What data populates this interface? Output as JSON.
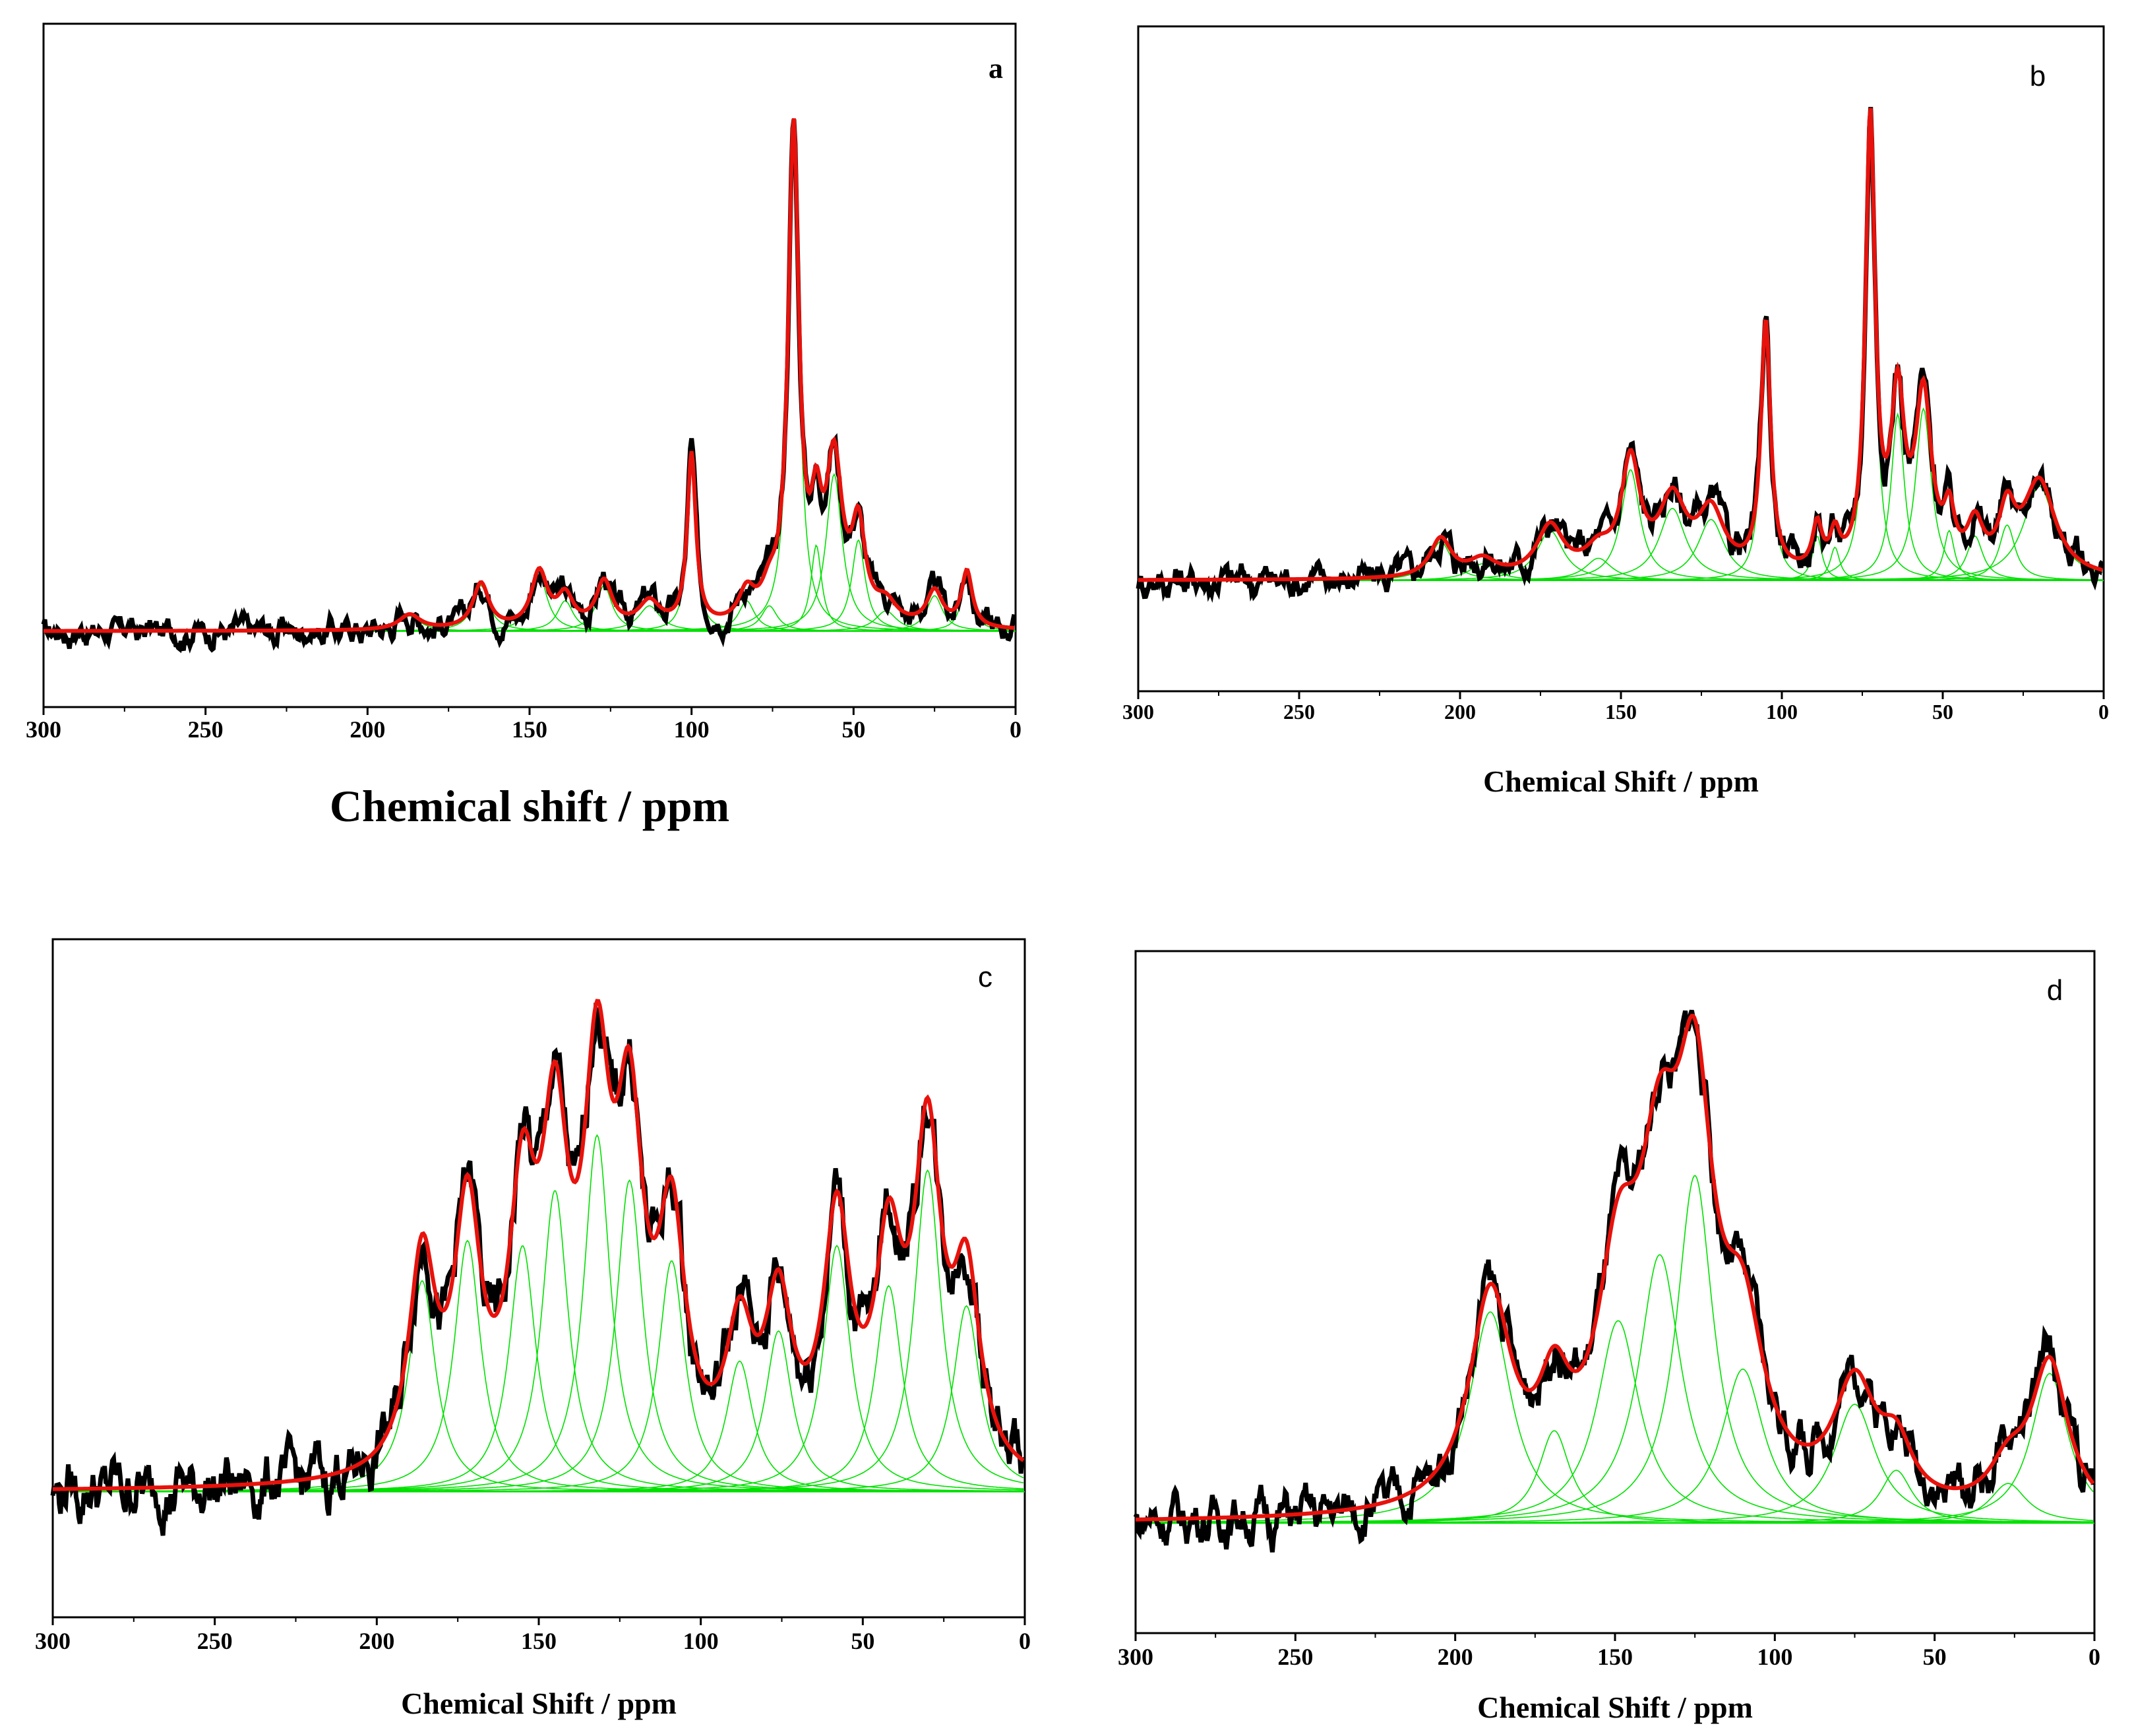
{
  "colors": {
    "experimental": "#000000",
    "fit": "#e8120c",
    "component": "#00e000",
    "axes": "#000000"
  },
  "chart_data": [
    {
      "type": "line",
      "panel_label": "a",
      "xlabel": "Chemical shift / ppm",
      "ylabel": "",
      "xlim": [
        300,
        0
      ],
      "ylim": [
        -0.15,
        1.2
      ],
      "x_ticks": [
        300,
        250,
        200,
        150,
        100,
        50,
        0
      ],
      "x_tick_labels": [
        "300",
        "250",
        "200",
        "150",
        "100",
        "50",
        "0"
      ],
      "grid": false,
      "legend": "none",
      "series": [
        {
          "name": "Experimental spectrum",
          "color": "#000000"
        },
        {
          "name": "Fitted envelope",
          "color": "#e8120c"
        },
        {
          "name": "Deconvoluted components",
          "color": "#00e000"
        }
      ],
      "components": [
        {
          "center": 187,
          "height": 0.03,
          "width": 4
        },
        {
          "center": 165,
          "height": 0.09,
          "width": 3
        },
        {
          "center": 147,
          "height": 0.11,
          "width": 3
        },
        {
          "center": 139,
          "height": 0.06,
          "width": 3
        },
        {
          "center": 127,
          "height": 0.09,
          "width": 3
        },
        {
          "center": 113,
          "height": 0.05,
          "width": 4
        },
        {
          "center": 100,
          "height": 0.34,
          "width": 1.6
        },
        {
          "center": 83,
          "height": 0.06,
          "width": 3
        },
        {
          "center": 76,
          "height": 0.05,
          "width": 3
        },
        {
          "center": 68.5,
          "height": 0.97,
          "width": 2.0
        },
        {
          "center": 61.5,
          "height": 0.17,
          "width": 2.0
        },
        {
          "center": 56,
          "height": 0.31,
          "width": 3
        },
        {
          "center": 48.5,
          "height": 0.18,
          "width": 2.5
        },
        {
          "center": 40,
          "height": 0.04,
          "width": 4
        },
        {
          "center": 25,
          "height": 0.07,
          "width": 3
        },
        {
          "center": 15,
          "height": 0.11,
          "width": 2
        }
      ],
      "noise_amplitude": 0.008
    },
    {
      "type": "line",
      "panel_label": "b",
      "xlabel": "Chemical Shift / ppm",
      "ylabel": "",
      "xlim": [
        300,
        0
      ],
      "ylim": [
        -0.2,
        1.0
      ],
      "x_ticks": [
        300,
        250,
        200,
        150,
        100,
        50,
        0
      ],
      "x_tick_labels": [
        "300",
        "250",
        "200",
        "150",
        "100",
        "50",
        "0"
      ],
      "grid": false,
      "legend": "none",
      "series": [
        {
          "name": "Experimental spectrum",
          "color": "#000000"
        },
        {
          "name": "Fitted envelope",
          "color": "#e8120c"
        },
        {
          "name": "Deconvoluted components",
          "color": "#00e000"
        }
      ],
      "components": [
        {
          "center": 206,
          "height": 0.07,
          "width": 4
        },
        {
          "center": 193,
          "height": 0.03,
          "width": 5
        },
        {
          "center": 172,
          "height": 0.09,
          "width": 5
        },
        {
          "center": 157,
          "height": 0.04,
          "width": 5
        },
        {
          "center": 147,
          "height": 0.2,
          "width": 3.5
        },
        {
          "center": 134,
          "height": 0.13,
          "width": 5
        },
        {
          "center": 122,
          "height": 0.11,
          "width": 5
        },
        {
          "center": 105,
          "height": 0.45,
          "width": 1.8
        },
        {
          "center": 89,
          "height": 0.08,
          "width": 1.8
        },
        {
          "center": 83.5,
          "height": 0.06,
          "width": 1.8
        },
        {
          "center": 72.5,
          "height": 0.81,
          "width": 1.8
        },
        {
          "center": 64,
          "height": 0.3,
          "width": 2.5
        },
        {
          "center": 56,
          "height": 0.31,
          "width": 3
        },
        {
          "center": 48,
          "height": 0.09,
          "width": 2
        },
        {
          "center": 40,
          "height": 0.08,
          "width": 3
        },
        {
          "center": 30,
          "height": 0.1,
          "width": 3
        },
        {
          "center": 20,
          "height": 0.17,
          "width": 6
        }
      ],
      "noise_amplitude": 0.009
    },
    {
      "type": "line",
      "panel_label": "c",
      "xlabel": "Chemical Shift / ppm",
      "ylabel": "",
      "xlim": [
        300,
        0
      ],
      "ylim": [
        -0.25,
        1.1
      ],
      "x_ticks": [
        300,
        250,
        200,
        150,
        100,
        50,
        0
      ],
      "x_tick_labels": [
        "300",
        "250",
        "200",
        "150",
        "100",
        "50",
        "0"
      ],
      "grid": false,
      "legend": "none",
      "series": [
        {
          "name": "Experimental spectrum",
          "color": "#000000"
        },
        {
          "name": "Fitted envelope",
          "color": "#e8120c"
        },
        {
          "name": "Deconvoluted components",
          "color": "#00e000"
        }
      ],
      "components": [
        {
          "center": 186,
          "height": 0.42,
          "width": 5
        },
        {
          "center": 172,
          "height": 0.5,
          "width": 5
        },
        {
          "center": 155,
          "height": 0.49,
          "width": 5
        },
        {
          "center": 145,
          "height": 0.6,
          "width": 5
        },
        {
          "center": 132,
          "height": 0.71,
          "width": 5
        },
        {
          "center": 122,
          "height": 0.62,
          "width": 5
        },
        {
          "center": 109,
          "height": 0.46,
          "width": 5
        },
        {
          "center": 88,
          "height": 0.26,
          "width": 5
        },
        {
          "center": 76,
          "height": 0.32,
          "width": 5
        },
        {
          "center": 58,
          "height": 0.49,
          "width": 5
        },
        {
          "center": 42,
          "height": 0.41,
          "width": 5
        },
        {
          "center": 30,
          "height": 0.64,
          "width": 5
        },
        {
          "center": 18,
          "height": 0.37,
          "width": 5
        }
      ],
      "noise_amplitude": 0.018
    },
    {
      "type": "line",
      "panel_label": "d",
      "xlabel": "Chemical Shift / ppm",
      "ylabel": "",
      "xlim": [
        300,
        0
      ],
      "ylim": [
        -0.25,
        1.3
      ],
      "x_ticks": [
        300,
        250,
        200,
        150,
        100,
        50,
        0
      ],
      "x_tick_labels": [
        "300",
        "250",
        "200",
        "150",
        "100",
        "50",
        "0"
      ],
      "grid": false,
      "legend": "none",
      "series": [
        {
          "name": "Experimental spectrum",
          "color": "#000000"
        },
        {
          "name": "Fitted envelope",
          "color": "#e8120c"
        },
        {
          "name": "Deconvoluted components",
          "color": "#00e000"
        }
      ],
      "components": [
        {
          "center": 189,
          "height": 0.48,
          "width": 8
        },
        {
          "center": 169,
          "height": 0.21,
          "width": 6
        },
        {
          "center": 149,
          "height": 0.46,
          "width": 8
        },
        {
          "center": 136,
          "height": 0.61,
          "width": 8
        },
        {
          "center": 125,
          "height": 0.79,
          "width": 7
        },
        {
          "center": 110,
          "height": 0.35,
          "width": 8
        },
        {
          "center": 75,
          "height": 0.27,
          "width": 8
        },
        {
          "center": 62,
          "height": 0.12,
          "width": 6
        },
        {
          "center": 27,
          "height": 0.09,
          "width": 7
        },
        {
          "center": 14,
          "height": 0.34,
          "width": 7
        }
      ],
      "noise_amplitude": 0.016
    }
  ]
}
